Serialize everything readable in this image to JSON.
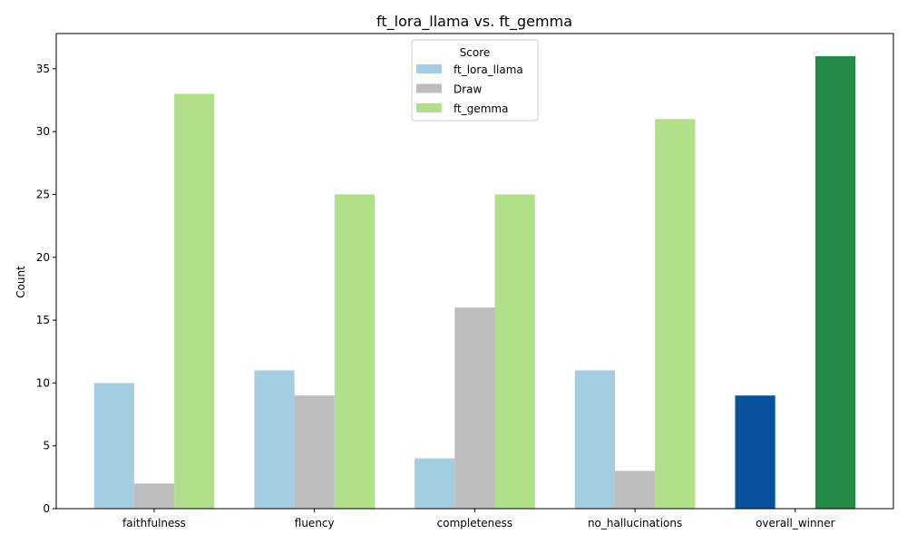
{
  "chart_data": {
    "type": "bar",
    "title": "ft_lora_llama vs. ft_gemma",
    "xlabel": "",
    "ylabel": "Count",
    "ylim": [
      0,
      37.8
    ],
    "yticks": [
      0,
      5,
      10,
      15,
      20,
      25,
      30,
      35
    ],
    "categories": [
      "faithfulness",
      "fluency",
      "completeness",
      "no_hallucinations",
      "overall_winner"
    ],
    "legend": {
      "title": "Score",
      "placement": "upper-center"
    },
    "series": [
      {
        "name": "ft_lora_llama",
        "color": "#a6cee3",
        "values": [
          10,
          11,
          4,
          11,
          9
        ]
      },
      {
        "name": "Draw",
        "color": "#bdbdbd",
        "values": [
          2,
          9,
          16,
          3,
          0
        ]
      },
      {
        "name": "ft_gemma",
        "color": "#b2df8a",
        "values": [
          33,
          25,
          25,
          31,
          36
        ]
      }
    ],
    "highlight_colors": {
      "overall_winner": [
        "#08519c",
        "#bdbdbd",
        "#238b45"
      ]
    },
    "grid": false
  }
}
